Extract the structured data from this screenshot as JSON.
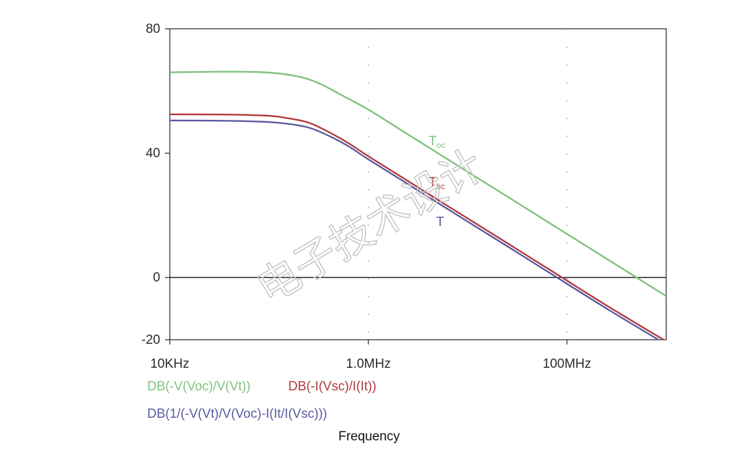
{
  "chart_data": {
    "type": "line",
    "x_scale": "log",
    "x_tick_labels": [
      "10KHz",
      "1.0MHz",
      "100MHz"
    ],
    "x_ticks": [
      10000,
      1000000,
      100000000
    ],
    "xlim": [
      10000,
      1000000000
    ],
    "ylim": [
      -20,
      80
    ],
    "y_ticks": [
      -20,
      0,
      40,
      80
    ],
    "xlabel": "Frequency",
    "grid": "vertical dotted",
    "series": [
      {
        "name": "DB(-V(Voc)/V(Vt))",
        "color": "#7ec27e",
        "annotation": {
          "main": "T",
          "sub": "oc"
        },
        "x": [
          10000,
          40000,
          100000,
          200000,
          316000,
          500000,
          1000000,
          2000000,
          5000000,
          10000000,
          30000000,
          100000000,
          300000000,
          1000000000
        ],
        "y": [
          66,
          66.2,
          65.9,
          64.6,
          62.5,
          59.2,
          54,
          48,
          40,
          34,
          24.5,
          14,
          4.5,
          -6
        ]
      },
      {
        "name": "DB(-I(Vsc)/I(It))",
        "color": "#b03a3a",
        "annotation": {
          "main": "T",
          "sub": "sc"
        },
        "x": [
          10000,
          40000,
          100000,
          158000,
          251000,
          398000,
          631000,
          1000000,
          2000000,
          5000000,
          10000000,
          30000000,
          100000000,
          300000000,
          1000000000
        ],
        "y": [
          52.5,
          52.4,
          52,
          51.2,
          49.8,
          46.8,
          43.2,
          39,
          33,
          25,
          19,
          9.5,
          -1,
          -10.5,
          -20.5
        ]
      },
      {
        "name": "DB(1/(-V(Vt)/V(Voc)-I(It/I(Vsc)))",
        "color": "#5a5aa0",
        "annotation": {
          "main": "T",
          "sub": ""
        },
        "x": [
          10000,
          40000,
          100000,
          158000,
          251000,
          398000,
          631000,
          1000000,
          2000000,
          5000000,
          10000000,
          30000000,
          100000000,
          300000000,
          1000000000
        ],
        "y": [
          50.5,
          50.4,
          50,
          49.4,
          48.2,
          45.6,
          42.2,
          38,
          32,
          24,
          18,
          8.5,
          -2,
          -11.5,
          -21.5
        ]
      }
    ]
  },
  "watermark": "电子技术设计"
}
